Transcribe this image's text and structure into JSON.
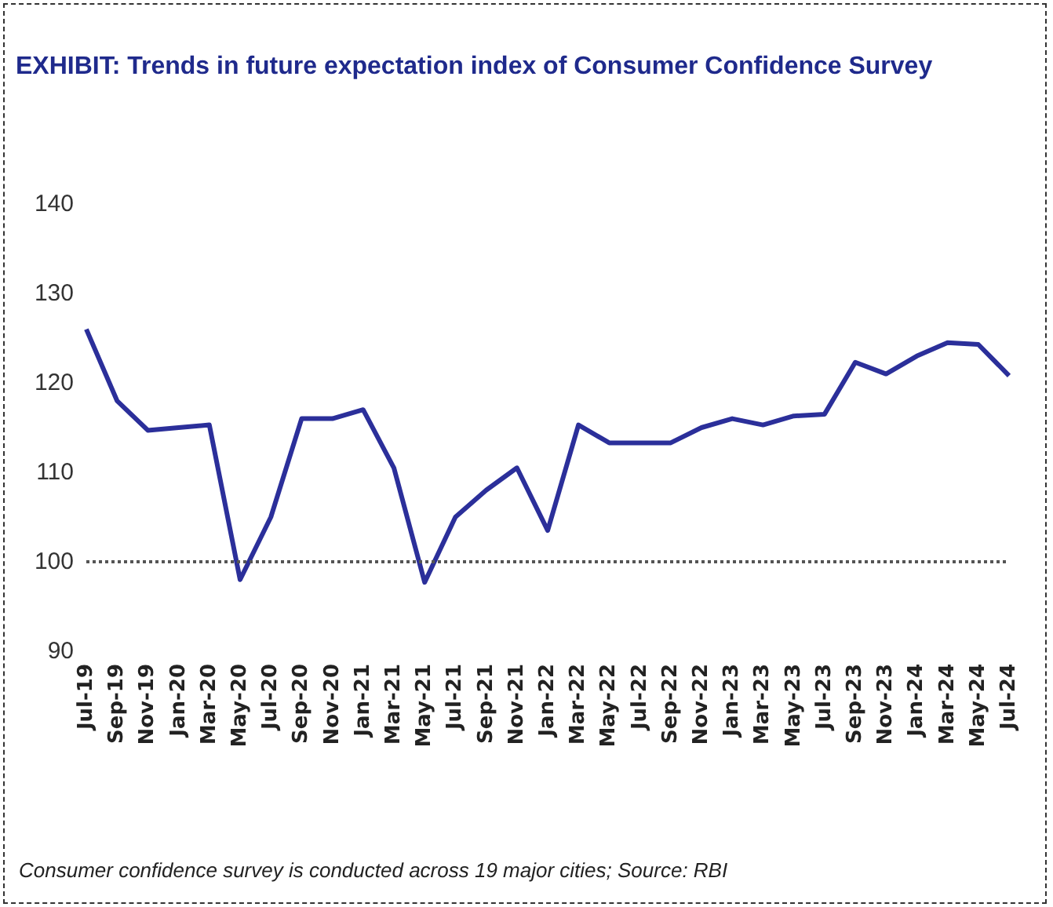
{
  "chart_data": {
    "type": "line",
    "title": "EXHIBIT: Trends in future expectation index of Consumer Confidence Survey",
    "categories": [
      "Jul-19",
      "Sep-19",
      "Nov-19",
      "Jan-20",
      "Mar-20",
      "May-20",
      "Jul-20",
      "Sep-20",
      "Nov-20",
      "Jan-21",
      "Mar-21",
      "May-21",
      "Jul-21",
      "Sep-21",
      "Nov-21",
      "Jan-22",
      "Mar-22",
      "May-22",
      "Jul-22",
      "Sep-22",
      "Nov-22",
      "Jan-23",
      "Mar-23",
      "May-23",
      "Jul-23",
      "Sep-23",
      "Nov-23",
      "Jan-24",
      "Mar-24",
      "May-24",
      "Jul-24"
    ],
    "series": [
      {
        "color": "#2b2f9a",
        "values": [
          126,
          118,
          114.7,
          115,
          115.3,
          98,
          105,
          116,
          116,
          117,
          110.5,
          97.7,
          105,
          108,
          110.5,
          103.5,
          115.3,
          113.3,
          113.3,
          113.3,
          115,
          116,
          115.3,
          116.3,
          116.5,
          122.3,
          121,
          123,
          124.5,
          124.3,
          120.8
        ]
      }
    ],
    "ylim": [
      90,
      140
    ],
    "yticks": [
      90,
      100,
      110,
      120,
      130,
      140
    ],
    "ref_lines": [
      {
        "axis": "y",
        "value": 100,
        "color": "#555555",
        "line_style": "dotted"
      }
    ],
    "grid": false,
    "marker": "none",
    "line_style": "solid",
    "annotations": [
      "Consumer confidence survey is conducted across 19 major cities; Source: RBI"
    ]
  }
}
